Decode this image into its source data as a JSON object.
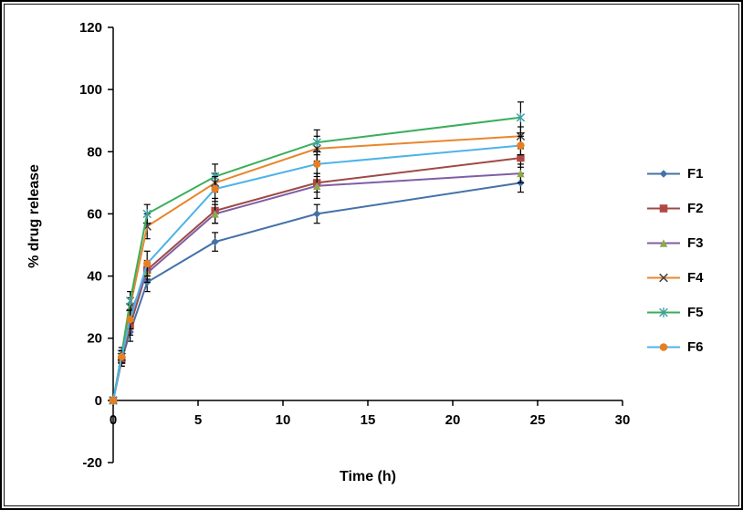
{
  "chart_data": {
    "type": "line",
    "title": "",
    "xlabel": "Time (h)",
    "ylabel": "% drug release",
    "x": [
      0,
      0.5,
      1,
      2,
      6,
      12,
      24
    ],
    "xlim": [
      0,
      30
    ],
    "ylim": [
      -20,
      120
    ],
    "x_ticks": [
      0,
      5,
      10,
      15,
      20,
      25,
      30
    ],
    "y_ticks": [
      -20,
      0,
      20,
      40,
      60,
      80,
      100,
      120
    ],
    "grid": false,
    "legend_position": "right",
    "axis_color": "#000000",
    "error_bar_color": "#000000",
    "series": [
      {
        "name": "F1",
        "marker": "diamond",
        "line_color": "#4472A8",
        "marker_color": "#4472A8",
        "values": [
          0,
          13,
          22,
          38,
          51,
          60,
          70
        ],
        "errors": [
          0,
          2,
          3,
          3,
          3,
          3,
          3
        ]
      },
      {
        "name": "F2",
        "marker": "square",
        "line_color": "#9E4A45",
        "marker_color": "#B04946",
        "values": [
          0,
          13,
          24,
          42,
          61,
          70,
          78
        ],
        "errors": [
          0,
          2,
          3,
          3,
          4,
          3,
          3
        ]
      },
      {
        "name": "F3",
        "marker": "triangle",
        "line_color": "#7E5FA5",
        "marker_color": "#8EA84B",
        "values": [
          0,
          14,
          28,
          41,
          60,
          69,
          73
        ],
        "errors": [
          0,
          2,
          3,
          3,
          3,
          4,
          3
        ]
      },
      {
        "name": "F4",
        "marker": "x",
        "line_color": "#E8862D",
        "marker_color": "#444444",
        "values": [
          0,
          14,
          30,
          56,
          70,
          81,
          85
        ],
        "errors": [
          0,
          2,
          3,
          4,
          3,
          4,
          3
        ]
      },
      {
        "name": "F5",
        "marker": "asterisk",
        "line_color": "#3BAE5C",
        "marker_color": "#3E9EA8",
        "values": [
          0,
          15,
          32,
          60,
          72,
          83,
          91
        ],
        "errors": [
          0,
          2,
          3,
          3,
          4,
          4,
          5
        ]
      },
      {
        "name": "F6",
        "marker": "circle",
        "line_color": "#4FB3E8",
        "marker_color": "#E87E22",
        "values": [
          0,
          14,
          26,
          44,
          68,
          76,
          82
        ],
        "errors": [
          0,
          2,
          3,
          4,
          4,
          4,
          3
        ]
      }
    ]
  }
}
